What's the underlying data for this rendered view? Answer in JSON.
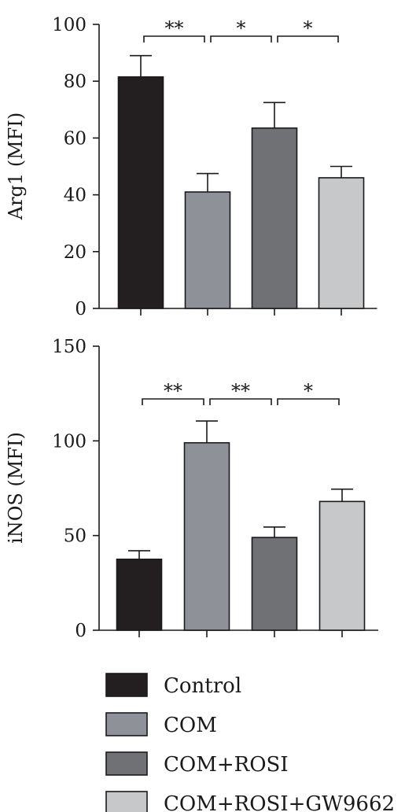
{
  "legend": [
    {
      "label": "Control",
      "color": "#231f20"
    },
    {
      "label": "COM",
      "color": "#8e9298"
    },
    {
      "label": "COM+ROSI",
      "color": "#6f7175"
    },
    {
      "label": "COM+ROSI+GW9662",
      "color": "#c6c8ca"
    }
  ],
  "chart_data": [
    {
      "type": "bar",
      "categories": [
        "Control",
        "COM",
        "COM+ROSI",
        "COM+ROSI+GW9662"
      ],
      "values": [
        81.5,
        41,
        63.5,
        46
      ],
      "errors": [
        7.5,
        6.5,
        9,
        4
      ],
      "ylabel": "Arg1 (MFI)",
      "ylim": [
        0,
        100
      ],
      "yticks": [
        0,
        20,
        40,
        60,
        80,
        100
      ],
      "significance": [
        {
          "from": 0,
          "to": 1,
          "label": "**"
        },
        {
          "from": 1,
          "to": 2,
          "label": "*"
        },
        {
          "from": 2,
          "to": 3,
          "label": "*"
        }
      ]
    },
    {
      "type": "bar",
      "categories": [
        "Control",
        "COM",
        "COM+ROSI",
        "COM+ROSI+GW9662"
      ],
      "values": [
        37.5,
        99,
        49,
        68
      ],
      "errors": [
        4.5,
        11.5,
        5.5,
        6.5
      ],
      "ylabel": "iNOS (MFI)",
      "ylim": [
        0,
        150
      ],
      "yticks": [
        0,
        50,
        100,
        150
      ],
      "significance": [
        {
          "from": 0,
          "to": 1,
          "label": "**"
        },
        {
          "from": 1,
          "to": 2,
          "label": "**"
        },
        {
          "from": 2,
          "to": 3,
          "label": "*"
        }
      ]
    }
  ]
}
